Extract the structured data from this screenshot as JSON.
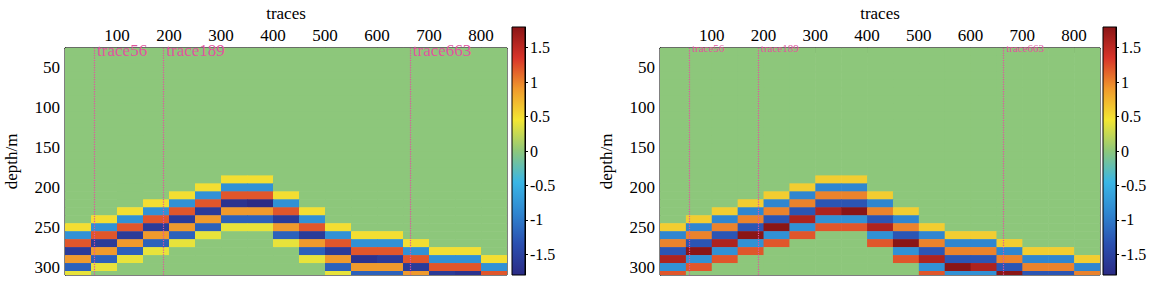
{
  "chart_data": [
    {
      "type": "heatmap",
      "x_label": "traces",
      "y_label": "depth/m",
      "x": [
        25,
        75,
        125,
        175,
        225,
        275,
        325,
        375,
        425,
        475,
        525,
        575,
        625,
        675,
        725,
        775,
        825
      ],
      "y": [
        30,
        40,
        50,
        60,
        70,
        80,
        90,
        100,
        110,
        120,
        130,
        140,
        150,
        160,
        170,
        180,
        190,
        200,
        210,
        220,
        230,
        240,
        250,
        260,
        270,
        280,
        290,
        300,
        310
      ],
      "values": [
        [
          0,
          0,
          0,
          0,
          0,
          0,
          0,
          0,
          0,
          0,
          0,
          0,
          0,
          0,
          0,
          0,
          0
        ],
        [
          0,
          0,
          0,
          0,
          0,
          0,
          0,
          0,
          0,
          0,
          0,
          0,
          0,
          0,
          0,
          0,
          0
        ],
        [
          0,
          0,
          0,
          0,
          0,
          0,
          0,
          0,
          0,
          0,
          0,
          0,
          0,
          0,
          0,
          0,
          0
        ],
        [
          0,
          0,
          0,
          0,
          0,
          0,
          0,
          0,
          0,
          0,
          0,
          0,
          0,
          0,
          0,
          0,
          0
        ],
        [
          0,
          0,
          0,
          0,
          0,
          0,
          0,
          0,
          0,
          0,
          0,
          0,
          0,
          0,
          0,
          0,
          0
        ],
        [
          0,
          0,
          0,
          0,
          0,
          0,
          0,
          0,
          0,
          0,
          0,
          0,
          0,
          0,
          0,
          0,
          0
        ],
        [
          0,
          0,
          0,
          0,
          0,
          0,
          0,
          0,
          0,
          0,
          0,
          0,
          0,
          0,
          0,
          0,
          0
        ],
        [
          0,
          0,
          0,
          0,
          0,
          0,
          0,
          0,
          0,
          0,
          0,
          0,
          0,
          0,
          0,
          0,
          0
        ],
        [
          0,
          0,
          0,
          0,
          0,
          0,
          0,
          0,
          0,
          0,
          0,
          0,
          0,
          0,
          0,
          0,
          0
        ],
        [
          0,
          0,
          0,
          0,
          0,
          0,
          0,
          0,
          0,
          0,
          0,
          0,
          0,
          0,
          0,
          0,
          0
        ],
        [
          0,
          0,
          0,
          0,
          0,
          0,
          0,
          0,
          0,
          0,
          0,
          0,
          0,
          0,
          0,
          0,
          0
        ],
        [
          0,
          0,
          0,
          0,
          0,
          0,
          0,
          0,
          0,
          0,
          0,
          0,
          0,
          0,
          0,
          0,
          0
        ],
        [
          0,
          0,
          0,
          0,
          0,
          0,
          0,
          0,
          0,
          0,
          0,
          0,
          0,
          0,
          0,
          0,
          0
        ],
        [
          0,
          0,
          0,
          0,
          0,
          0,
          0,
          0,
          0,
          0,
          0,
          0,
          0,
          0,
          0,
          0,
          0
        ],
        [
          0,
          0,
          0,
          0,
          0,
          0,
          0,
          0,
          0,
          0,
          0,
          0,
          0,
          0,
          0,
          0,
          0
        ],
        [
          0,
          0,
          0,
          0,
          0,
          0,
          0,
          0,
          0,
          0,
          0,
          0,
          0,
          0,
          0,
          0,
          0
        ],
        [
          0,
          0,
          0,
          0,
          0,
          0,
          0.5,
          0.5,
          0,
          0,
          0,
          0,
          0,
          0,
          0,
          0,
          0
        ],
        [
          0,
          0,
          0,
          0,
          0,
          0.5,
          -0.8,
          -0.8,
          0,
          0,
          0,
          0,
          0,
          0,
          0,
          0,
          0
        ],
        [
          0,
          0,
          0,
          0,
          0.5,
          -0.8,
          1.2,
          1.2,
          0.5,
          0,
          0,
          0,
          0,
          0,
          0,
          0,
          0
        ],
        [
          0,
          0,
          0,
          0.5,
          -0.8,
          1.2,
          -1.7,
          -1.8,
          -0.8,
          0,
          0,
          0,
          0,
          0,
          0,
          0,
          0
        ],
        [
          0,
          0,
          0.5,
          -0.8,
          1.2,
          -1.6,
          0.9,
          0.9,
          1.2,
          0.5,
          0,
          0,
          0,
          0,
          0,
          0,
          0
        ],
        [
          0,
          0.5,
          -0.8,
          1.2,
          -1.6,
          0.9,
          -1.2,
          -1.2,
          -1.6,
          -0.8,
          0,
          0,
          0,
          0,
          0,
          0,
          0
        ],
        [
          0.5,
          -0.8,
          1.2,
          -1.6,
          0.9,
          -1.2,
          0.4,
          0.4,
          0.9,
          1.2,
          0.5,
          0,
          0,
          0,
          0,
          0,
          0
        ],
        [
          -0.8,
          1.2,
          -1.6,
          0.9,
          -1.2,
          0.4,
          0,
          0,
          -1.2,
          -1.6,
          -0.8,
          0.5,
          0.5,
          0,
          0,
          0,
          0
        ],
        [
          1.2,
          -1.6,
          0.9,
          -1.2,
          0.4,
          0,
          0,
          0,
          0.4,
          0.9,
          1.2,
          -0.8,
          -0.8,
          0.5,
          0,
          0,
          0
        ],
        [
          -1.6,
          0.9,
          -1.2,
          0.4,
          0,
          0,
          0,
          0,
          0,
          -1.2,
          -1.6,
          1.2,
          1.2,
          -0.8,
          0.5,
          0.5,
          0
        ],
        [
          0.9,
          -1.2,
          0.4,
          0,
          0,
          0,
          0,
          0,
          0,
          0.4,
          0.9,
          -1.7,
          -1.6,
          1.2,
          -0.8,
          -0.8,
          0.5
        ],
        [
          -1.2,
          0.4,
          0,
          0,
          0,
          0,
          0,
          0,
          0,
          0,
          -1.2,
          0.9,
          0.9,
          -1.6,
          1.2,
          1.2,
          -0.8
        ],
        [
          0.4,
          0,
          0,
          0,
          0,
          0,
          0,
          0,
          0,
          0,
          0.4,
          -1.2,
          -1.2,
          0.9,
          -1.6,
          -1.7,
          1.2
        ]
      ],
      "xlim": [
        0,
        850
      ],
      "ylim": [
        25,
        310
      ],
      "xticks": [
        100,
        200,
        300,
        400,
        500,
        600,
        700,
        800
      ],
      "yticks": [
        50,
        100,
        150,
        200,
        250,
        300
      ],
      "colorbar_range": [
        -1.8,
        1.8
      ],
      "colorbar_ticks": [
        -1.5,
        -1,
        -0.5,
        0,
        0.5,
        1,
        1.5
      ],
      "annotations": [
        {
          "x": 56,
          "text": "trace56"
        },
        {
          "x": 189,
          "text": "trace189"
        },
        {
          "x": 663,
          "text": "trace663"
        }
      ]
    },
    {
      "type": "heatmap",
      "x_label": "traces",
      "y_label": "depth/m",
      "x": [
        25,
        75,
        125,
        175,
        225,
        275,
        325,
        375,
        425,
        475,
        525,
        575,
        625,
        675,
        725,
        775,
        825
      ],
      "y": [
        30,
        40,
        50,
        60,
        70,
        80,
        90,
        100,
        110,
        120,
        130,
        140,
        150,
        160,
        170,
        180,
        190,
        200,
        210,
        220,
        230,
        240,
        250,
        260,
        270,
        280,
        290,
        300,
        310
      ],
      "values": [
        [
          0,
          0,
          0,
          0,
          0,
          0,
          0,
          0,
          0,
          0,
          0,
          0,
          0,
          0,
          0,
          0,
          0
        ],
        [
          0,
          0,
          0,
          0,
          0,
          0,
          0,
          0,
          0,
          0,
          0,
          0,
          0,
          0,
          0,
          0,
          0
        ],
        [
          0,
          0,
          0,
          0,
          0,
          0,
          0,
          0,
          0,
          0,
          0,
          0,
          0,
          0,
          0,
          0,
          0
        ],
        [
          0,
          0,
          0,
          0,
          0,
          0,
          0,
          0,
          0,
          0,
          0,
          0,
          0,
          0,
          0,
          0,
          0
        ],
        [
          0,
          0,
          0,
          0,
          0,
          0,
          0,
          0,
          0,
          0,
          0,
          0,
          0,
          0,
          0,
          0,
          0
        ],
        [
          0,
          0,
          0,
          0,
          0,
          0,
          0,
          0,
          0,
          0,
          0,
          0,
          0,
          0,
          0,
          0,
          0
        ],
        [
          0,
          0,
          0,
          0,
          0,
          0,
          0,
          0,
          0,
          0,
          0,
          0,
          0,
          0,
          0,
          0,
          0
        ],
        [
          0,
          0,
          0,
          0,
          0,
          0,
          0,
          0,
          0,
          0,
          0,
          0,
          0,
          0,
          0,
          0,
          0
        ],
        [
          0,
          0,
          0,
          0,
          0,
          0,
          0,
          0,
          0,
          0,
          0,
          0,
          0,
          0,
          0,
          0,
          0
        ],
        [
          0,
          0,
          0,
          0,
          0,
          0,
          0,
          0,
          0,
          0,
          0,
          0,
          0,
          0,
          0,
          0,
          0
        ],
        [
          0,
          0,
          0,
          0,
          0,
          0,
          0,
          0,
          0,
          0,
          0,
          0,
          0,
          0,
          0,
          0,
          0
        ],
        [
          0,
          0,
          0,
          0,
          0,
          0,
          0,
          0,
          0,
          0,
          0,
          0,
          0,
          0,
          0,
          0,
          0
        ],
        [
          0,
          0,
          0,
          0,
          0,
          0,
          0,
          0,
          0,
          0,
          0,
          0,
          0,
          0,
          0,
          0,
          0
        ],
        [
          0,
          0,
          0,
          0,
          0,
          0,
          0,
          0,
          0,
          0,
          0,
          0,
          0,
          0,
          0,
          0,
          0
        ],
        [
          0,
          0,
          0,
          0,
          0,
          0,
          0,
          0,
          0,
          0,
          0,
          0,
          0,
          0,
          0,
          0,
          0
        ],
        [
          0,
          0,
          0,
          0,
          0,
          0,
          0,
          0,
          0,
          0,
          0,
          0,
          0,
          0,
          0,
          0,
          0
        ],
        [
          0,
          0,
          0,
          0,
          0,
          0,
          0.6,
          0.6,
          0,
          0,
          0,
          0,
          0,
          0,
          0,
          0,
          0
        ],
        [
          0,
          0,
          0,
          0,
          0,
          0.6,
          -0.9,
          -0.9,
          0,
          0,
          0,
          0,
          0,
          0,
          0,
          0,
          0
        ],
        [
          0,
          0,
          0,
          0,
          0.6,
          -0.9,
          1.0,
          1.0,
          0.6,
          0,
          0,
          0,
          0,
          0,
          0,
          0,
          0
        ],
        [
          0,
          0,
          0,
          0.6,
          -0.9,
          1.0,
          -1.3,
          -1.3,
          -0.9,
          0,
          0,
          0,
          0,
          0,
          0,
          0,
          0
        ],
        [
          0,
          0,
          0.6,
          -0.9,
          1.0,
          -1.3,
          1.6,
          1.8,
          1.0,
          0.6,
          0,
          0,
          0,
          0,
          0,
          0,
          0
        ],
        [
          0,
          0.6,
          -0.9,
          1.0,
          -1.3,
          1.6,
          -0.8,
          -0.8,
          -1.3,
          -0.9,
          0,
          0,
          0,
          0,
          0,
          0,
          0
        ],
        [
          0.6,
          -0.9,
          1.0,
          -1.3,
          1.8,
          -0.8,
          1.2,
          1.2,
          1.6,
          1.0,
          0.6,
          0,
          0,
          0,
          0,
          0,
          0
        ],
        [
          -0.9,
          1.0,
          -1.3,
          1.8,
          -0.8,
          1.2,
          0,
          0,
          -0.8,
          -1.3,
          -0.9,
          0.6,
          0.6,
          0,
          0,
          0,
          0
        ],
        [
          1.0,
          -1.3,
          1.6,
          -0.8,
          1.2,
          0,
          0,
          0,
          1.2,
          1.8,
          1.0,
          -0.9,
          -0.9,
          0.6,
          0,
          0,
          0
        ],
        [
          -1.3,
          1.8,
          -0.8,
          1.2,
          0,
          0,
          0,
          0,
          0,
          -0.8,
          -1.3,
          1.0,
          1.0,
          -0.9,
          0.6,
          0.6,
          0
        ],
        [
          1.6,
          -0.8,
          1.2,
          0,
          0,
          0,
          0,
          0,
          0,
          1.2,
          1.6,
          -1.3,
          -1.3,
          1.0,
          -0.9,
          -0.9,
          0.6
        ],
        [
          -0.8,
          1.2,
          0,
          0,
          0,
          0,
          0,
          0,
          0,
          0,
          -0.8,
          1.8,
          1.6,
          -1.3,
          1.0,
          1.0,
          -0.9
        ],
        [
          1.2,
          0,
          0,
          0,
          0,
          0,
          0,
          0,
          0,
          0,
          1.2,
          -0.8,
          -0.8,
          1.8,
          -1.3,
          -1.3,
          1.0
        ]
      ],
      "xlim": [
        0,
        850
      ],
      "ylim": [
        25,
        310
      ],
      "xticks": [
        100,
        200,
        300,
        400,
        500,
        600,
        700,
        800
      ],
      "yticks": [
        50,
        100,
        150,
        200,
        250,
        300
      ],
      "colorbar_range": [
        -1.8,
        1.8
      ],
      "colorbar_ticks": [
        -1.5,
        -1,
        -0.5,
        0,
        0.5,
        1,
        1.5
      ],
      "annotations": [
        {
          "x": 56,
          "text": "trace56"
        },
        {
          "x": 189,
          "text": "trace189"
        },
        {
          "x": 663,
          "text": "trace663"
        }
      ]
    }
  ]
}
